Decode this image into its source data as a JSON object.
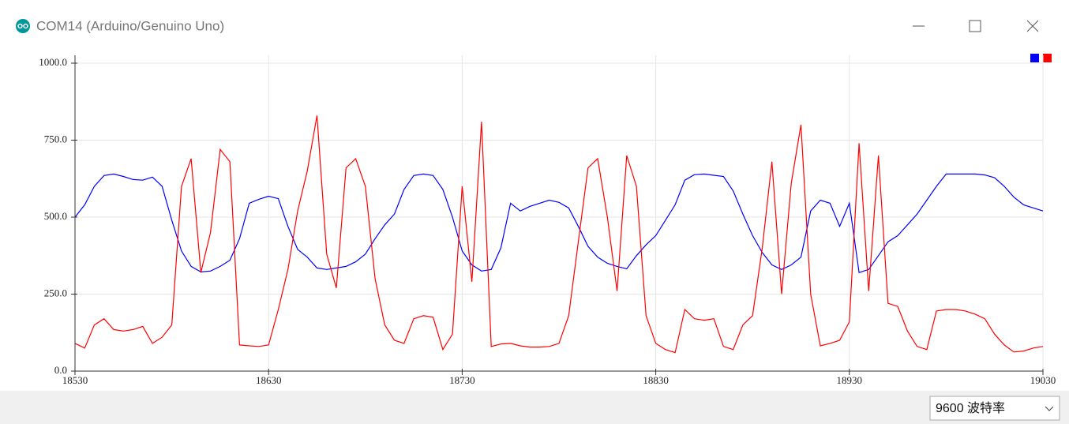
{
  "window": {
    "title": "COM14 (Arduino/Genuino Uno)",
    "baud_rate": "9600 波特率"
  },
  "chart_data": {
    "type": "line",
    "x": [
      18530,
      18535,
      18540,
      18545,
      18550,
      18555,
      18560,
      18565,
      18570,
      18575,
      18580,
      18585,
      18590,
      18595,
      18600,
      18605,
      18610,
      18615,
      18620,
      18625,
      18630,
      18635,
      18640,
      18645,
      18650,
      18655,
      18660,
      18665,
      18670,
      18675,
      18680,
      18685,
      18690,
      18695,
      18700,
      18705,
      18710,
      18715,
      18720,
      18725,
      18730,
      18735,
      18740,
      18745,
      18750,
      18755,
      18760,
      18765,
      18770,
      18775,
      18780,
      18785,
      18790,
      18795,
      18800,
      18805,
      18810,
      18815,
      18820,
      18825,
      18830,
      18835,
      18840,
      18845,
      18850,
      18855,
      18860,
      18865,
      18870,
      18875,
      18880,
      18885,
      18890,
      18895,
      18900,
      18905,
      18910,
      18915,
      18920,
      18925,
      18930,
      18935,
      18940,
      18945,
      18950,
      18955,
      18960,
      18965,
      18970,
      18975,
      18980,
      18985,
      18990,
      18995,
      19000,
      19005,
      19010,
      19015,
      19020,
      19025,
      19030
    ],
    "series": [
      {
        "color": "#0000ff",
        "values": [
          500,
          540,
          600,
          635,
          640,
          632,
          622,
          620,
          630,
          600,
          490,
          390,
          340,
          322,
          325,
          340,
          360,
          430,
          545,
          558,
          568,
          560,
          470,
          395,
          370,
          335,
          330,
          335,
          340,
          355,
          380,
          430,
          475,
          510,
          590,
          635,
          640,
          635,
          590,
          500,
          390,
          345,
          325,
          330,
          400,
          545,
          520,
          535,
          545,
          555,
          548,
          530,
          470,
          405,
          370,
          350,
          340,
          332,
          375,
          410,
          440,
          490,
          540,
          620,
          638,
          640,
          636,
          632,
          585,
          510,
          440,
          385,
          345,
          330,
          345,
          370,
          520,
          555,
          545,
          470,
          545,
          320,
          330,
          375,
          420,
          440,
          475,
          510,
          555,
          600,
          640,
          640,
          640,
          640,
          637,
          628,
          600,
          565,
          540,
          530,
          520
        ]
      },
      {
        "color": "#ff0000",
        "values": [
          90,
          75,
          150,
          170,
          135,
          130,
          135,
          145,
          90,
          110,
          150,
          600,
          690,
          320,
          450,
          720,
          680,
          85,
          82,
          80,
          85,
          200,
          330,
          520,
          650,
          830,
          380,
          270,
          660,
          690,
          600,
          300,
          150,
          100,
          90,
          170,
          180,
          175,
          70,
          120,
          600,
          290,
          810,
          80,
          88,
          90,
          82,
          78,
          78,
          80,
          90,
          180,
          420,
          660,
          690,
          500,
          260,
          700,
          600,
          180,
          90,
          70,
          60,
          200,
          170,
          165,
          170,
          80,
          70,
          150,
          180,
          400,
          680,
          250,
          610,
          800,
          250,
          82,
          90,
          100,
          160,
          740,
          260,
          700,
          220,
          210,
          130,
          80,
          70,
          195,
          200,
          200,
          195,
          185,
          170,
          120,
          85,
          62,
          65,
          75,
          80
        ]
      }
    ],
    "xlim": [
      18530,
      19030
    ],
    "xticks": [
      18530,
      18630,
      18730,
      18830,
      18930,
      19030
    ],
    "ylim": [
      0,
      1000
    ],
    "yticks": [
      {
        "value": 0,
        "label": "0.0"
      },
      {
        "value": 250,
        "label": "250.0"
      },
      {
        "value": 500,
        "label": "500.0"
      },
      {
        "value": 750,
        "label": "750.0"
      },
      {
        "value": 1000,
        "label": "1000.0"
      }
    ],
    "grid": true
  }
}
